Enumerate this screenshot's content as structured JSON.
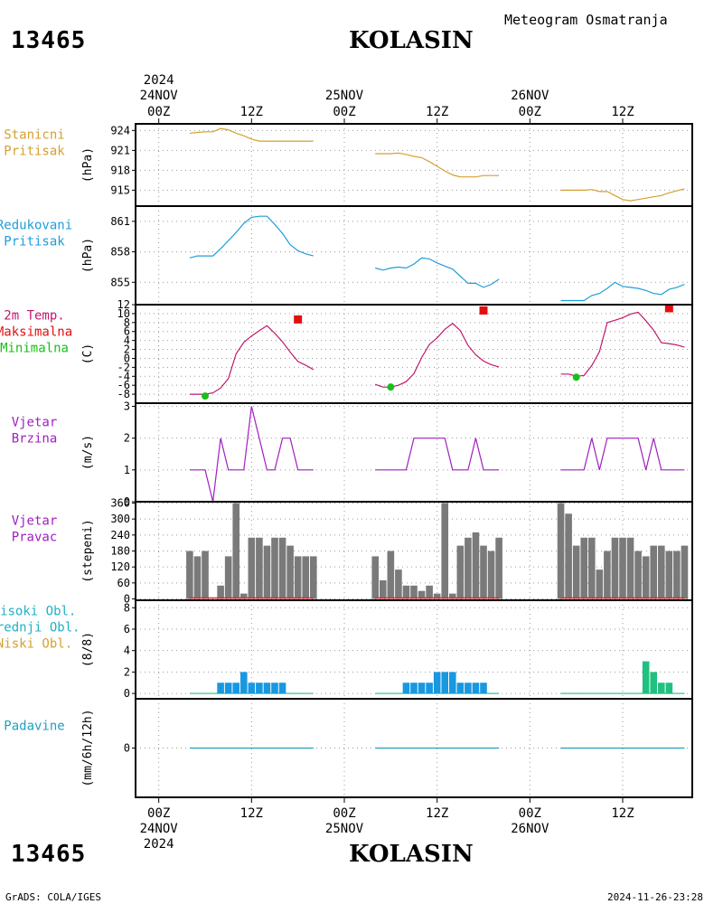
{
  "header": {
    "station_id": "13465",
    "station_name": "KOLASIN",
    "subtitle": "Meteogram Osmatranja"
  },
  "footer": {
    "station_id": "13465",
    "station_name": "KOLASIN",
    "software": "GrADS: COLA/IGES",
    "timestamp": "2024-11-26-23:28"
  },
  "colors": {
    "station_pressure": "#d4a030",
    "reduced_pressure": "#1f9ed8",
    "temperature": "#c0186c",
    "t_max": "#e01010",
    "t_min": "#18c018",
    "wind": "#a020c0",
    "direction_bar": "#7a7a7a",
    "clouds_high": "#20b0c8",
    "clouds_mid": "#1898e0",
    "clouds_low": "#20c080",
    "precip": "#20a0c0"
  },
  "chart_data": {
    "type": "line",
    "time_axis": {
      "top_year": "2024",
      "bottom_year": "2024",
      "day_labels": [
        "24NOV",
        "25NOV",
        "26NOV"
      ],
      "hour_labels": [
        "00Z",
        "12Z",
        "00Z",
        "12Z",
        "00Z",
        "12Z"
      ],
      "hour_positions": [
        0,
        12,
        24,
        36,
        48,
        60
      ],
      "day_label_positions": [
        0,
        24,
        48
      ],
      "xlim": [
        -3,
        69
      ],
      "unit": "hours from 24NOV 00Z"
    },
    "panels": [
      {
        "id": "station_pressure",
        "type": "line",
        "labels": [
          "Stanicni",
          "Pritisak"
        ],
        "label_colors": [
          "#d4a030",
          "#d4a030"
        ],
        "ylabel": "(hPa)",
        "ylim": [
          912.6,
          925
        ],
        "yticks": [
          915,
          918,
          921,
          924
        ],
        "segments": [
          {
            "x": [
              4,
              5,
              6,
              7,
              8,
              9,
              10,
              11,
              12,
              13,
              14,
              15,
              16,
              17,
              18,
              19,
              20
            ],
            "y": [
              923.6,
              923.7,
              923.8,
              923.8,
              924.3,
              924.1,
              923.6,
              923.2,
              922.7,
              922.4,
              922.4,
              922.4,
              922.4,
              922.4,
              922.4,
              922.4,
              922.4
            ]
          },
          {
            "x": [
              28,
              29,
              30,
              31,
              32,
              33,
              34,
              35,
              36,
              37,
              38,
              39,
              40,
              41,
              42,
              43,
              44
            ],
            "y": [
              920.5,
              920.5,
              920.5,
              920.6,
              920.4,
              920.1,
              919.9,
              919.3,
              918.6,
              917.9,
              917.3,
              917.0,
              917.0,
              917.0,
              917.2,
              917.2,
              917.2
            ]
          },
          {
            "x": [
              52,
              53,
              54,
              55,
              56,
              57,
              58,
              59,
              60,
              61,
              62,
              63,
              64,
              65,
              66,
              67,
              68
            ],
            "y": [
              915.0,
              915.0,
              915.0,
              915.0,
              915.1,
              914.8,
              914.8,
              914.2,
              913.6,
              913.4,
              913.6,
              913.8,
              914.0,
              914.2,
              914.6,
              914.9,
              915.2
            ]
          }
        ]
      },
      {
        "id": "reduced_pressure",
        "type": "line",
        "labels": [
          "Redukovani",
          "Pritisak"
        ],
        "label_colors": [
          "#1f9ed8",
          "#1f9ed8"
        ],
        "ylabel": "(hPa)",
        "ylim": [
          852.8,
          862.5
        ],
        "yticks": [
          855,
          858,
          861
        ],
        "segments": [
          {
            "x": [
              4,
              5,
              6,
              7,
              8,
              9,
              10,
              11,
              12,
              13,
              14,
              15,
              16,
              17,
              18,
              19,
              20
            ],
            "y": [
              857.4,
              857.6,
              857.6,
              857.6,
              858.3,
              859.1,
              859.9,
              860.8,
              861.4,
              861.5,
              861.5,
              860.7,
              859.8,
              858.7,
              858.1,
              857.8,
              857.6
            ]
          },
          {
            "x": [
              28,
              29,
              30,
              31,
              32,
              33,
              34,
              35,
              36,
              37,
              38,
              39,
              40,
              41,
              42,
              43,
              44
            ],
            "y": [
              856.4,
              856.2,
              856.4,
              856.5,
              856.4,
              856.8,
              857.4,
              857.3,
              856.9,
              856.6,
              856.3,
              855.6,
              854.9,
              854.9,
              854.5,
              854.8,
              855.3
            ]
          },
          {
            "x": [
              52,
              53,
              54,
              55,
              56,
              57,
              58,
              59,
              60,
              61,
              62,
              63,
              64,
              65,
              66,
              67,
              68
            ],
            "y": [
              853.2,
              853.2,
              853.2,
              853.2,
              853.7,
              853.9,
              854.4,
              855.0,
              854.6,
              854.5,
              854.4,
              854.2,
              853.9,
              853.8,
              854.3,
              854.5,
              854.8
            ]
          }
        ]
      },
      {
        "id": "temperature",
        "type": "line",
        "labels": [
          "2m Temp.",
          "Maksimalna",
          "Minimalna"
        ],
        "label_colors": [
          "#c0186c",
          "#e01010",
          "#18c018"
        ],
        "ylabel": "(C)",
        "ylim": [
          -10,
          12
        ],
        "yticks": [
          -8,
          -6,
          -4,
          -2,
          0,
          2,
          4,
          6,
          8,
          10,
          12
        ],
        "segments": [
          {
            "x": [
              4,
              5,
              6,
              7,
              8,
              9,
              10,
              11,
              12,
              13,
              14,
              15,
              16,
              17,
              18,
              19,
              20
            ],
            "y": [
              -8.0,
              -8.0,
              -8.0,
              -7.7,
              -6.6,
              -4.5,
              1.0,
              3.6,
              5.0,
              6.2,
              7.3,
              5.6,
              3.7,
              1.4,
              -0.7,
              -1.5,
              -2.5
            ]
          },
          {
            "x": [
              28,
              29,
              30,
              31,
              32,
              33,
              34,
              35,
              36,
              37,
              38,
              39,
              40,
              41,
              42,
              43,
              44
            ],
            "y": [
              -5.8,
              -6.4,
              -6.4,
              -6.0,
              -5.2,
              -3.4,
              0.2,
              3.1,
              4.6,
              6.5,
              7.8,
              6.2,
              2.9,
              0.8,
              -0.6,
              -1.4,
              -1.9
            ]
          },
          {
            "x": [
              52,
              53,
              54,
              55,
              56,
              57,
              58,
              59,
              60,
              61,
              62,
              63,
              64,
              65,
              66,
              67,
              68
            ],
            "y": [
              -3.5,
              -3.5,
              -4.0,
              -3.8,
              -1.6,
              1.5,
              8.0,
              8.5,
              9.1,
              9.9,
              10.3,
              8.4,
              6.3,
              3.5,
              3.3,
              3.0,
              2.5
            ]
          }
        ],
        "t_max": {
          "x": [
            18,
            42,
            66
          ],
          "y": [
            8.7,
            10.7,
            11.2
          ]
        },
        "t_min": {
          "x": [
            6,
            30,
            54
          ],
          "y": [
            -8.4,
            -6.4,
            -4.2
          ]
        }
      },
      {
        "id": "wind_speed",
        "type": "line",
        "labels": [
          "Vjetar",
          "Brzina"
        ],
        "label_colors": [
          "#a020c0",
          "#a020c0"
        ],
        "ylabel": "(m/s)",
        "ylim": [
          0,
          3.1
        ],
        "yticks": [
          0,
          1,
          2,
          3
        ],
        "segments": [
          {
            "x": [
              4,
              5,
              6,
              7,
              8,
              9,
              10,
              11,
              12,
              13,
              14,
              15,
              16,
              17,
              18,
              19,
              20
            ],
            "y": [
              1,
              1,
              1,
              0,
              2,
              1,
              1,
              1,
              3,
              2,
              1,
              1,
              2,
              2,
              1,
              1,
              1
            ]
          },
          {
            "x": [
              28,
              29,
              30,
              31,
              32,
              33,
              34,
              35,
              36,
              37,
              38,
              39,
              40,
              41,
              42,
              43,
              44
            ],
            "y": [
              1,
              1,
              1,
              1,
              1,
              2,
              2,
              2,
              2,
              2,
              1,
              1,
              1,
              2,
              1,
              1,
              1
            ]
          },
          {
            "x": [
              52,
              53,
              54,
              55,
              56,
              57,
              58,
              59,
              60,
              61,
              62,
              63,
              64,
              65,
              66,
              67,
              68
            ],
            "y": [
              1,
              1,
              1,
              1,
              2,
              1,
              2,
              2,
              2,
              2,
              2,
              1,
              2,
              1,
              1,
              1,
              1
            ]
          }
        ]
      },
      {
        "id": "wind_direction",
        "type": "bar",
        "labels": [
          "Vjetar",
          "Pravac"
        ],
        "label_colors": [
          "#a020c0",
          "#a020c0"
        ],
        "ylabel": "(stepeni)",
        "ylim": [
          -5,
          365
        ],
        "yticks": [
          0,
          60,
          120,
          180,
          240,
          300,
          360
        ],
        "bars": {
          "x": [
            4,
            5,
            6,
            7,
            8,
            9,
            10,
            11,
            12,
            13,
            14,
            15,
            16,
            17,
            18,
            19,
            20,
            28,
            29,
            30,
            31,
            32,
            33,
            34,
            35,
            36,
            37,
            38,
            39,
            40,
            41,
            42,
            43,
            44,
            52,
            53,
            54,
            55,
            56,
            57,
            58,
            59,
            60,
            61,
            62,
            63,
            64,
            65,
            66,
            67,
            68
          ],
          "values": [
            180,
            160,
            180,
            0,
            50,
            160,
            360,
            20,
            230,
            230,
            200,
            230,
            230,
            200,
            160,
            160,
            160,
            160,
            70,
            180,
            110,
            50,
            50,
            30,
            50,
            20,
            360,
            20,
            200,
            230,
            250,
            200,
            180,
            230,
            360,
            320,
            200,
            230,
            230,
            110,
            180,
            230,
            230,
            230,
            180,
            160,
            200,
            200,
            180,
            180,
            200
          ]
        }
      },
      {
        "id": "clouds",
        "type": "bar",
        "labels": [
          "Visoki Obl.",
          "Srednji Obl.",
          "Niski Obl."
        ],
        "label_colors": [
          "#20b0c8",
          "#20b0c8",
          "#d4a030"
        ],
        "ylabel": "(8/8)",
        "ylim": [
          -0.5,
          8.7
        ],
        "yticks": [
          0,
          2,
          4,
          6,
          8
        ],
        "segments_x": [
          [
            4,
            20
          ],
          [
            28,
            44
          ],
          [
            52,
            68
          ]
        ],
        "bars": [
          {
            "layer": "mid",
            "x": [
              8,
              9,
              10,
              11,
              12,
              13,
              14,
              15,
              16
            ],
            "values": [
              1,
              1,
              1,
              2,
              1,
              1,
              1,
              1,
              1
            ]
          },
          {
            "layer": "mid",
            "x": [
              32,
              33,
              34,
              35,
              36,
              37,
              38,
              39,
              40,
              41,
              42
            ],
            "values": [
              1,
              1,
              1,
              1,
              2,
              2,
              2,
              1,
              1,
              1,
              1
            ]
          },
          {
            "layer": "low",
            "x": [
              63,
              64,
              65,
              66
            ],
            "values": [
              3,
              2,
              1,
              1
            ]
          }
        ]
      },
      {
        "id": "precipitation",
        "type": "line",
        "labels": [
          "Padavine"
        ],
        "label_colors": [
          "#20a0c0"
        ],
        "ylabel": "(mm/6h/12h)",
        "ylim": [
          -1,
          1
        ],
        "yticks": [
          0
        ],
        "segments": [
          {
            "x": [
              4,
              20
            ],
            "y": [
              0,
              0
            ]
          },
          {
            "x": [
              28,
              44
            ],
            "y": [
              0,
              0
            ]
          },
          {
            "x": [
              52,
              68
            ],
            "y": [
              0,
              0
            ]
          }
        ]
      }
    ]
  }
}
